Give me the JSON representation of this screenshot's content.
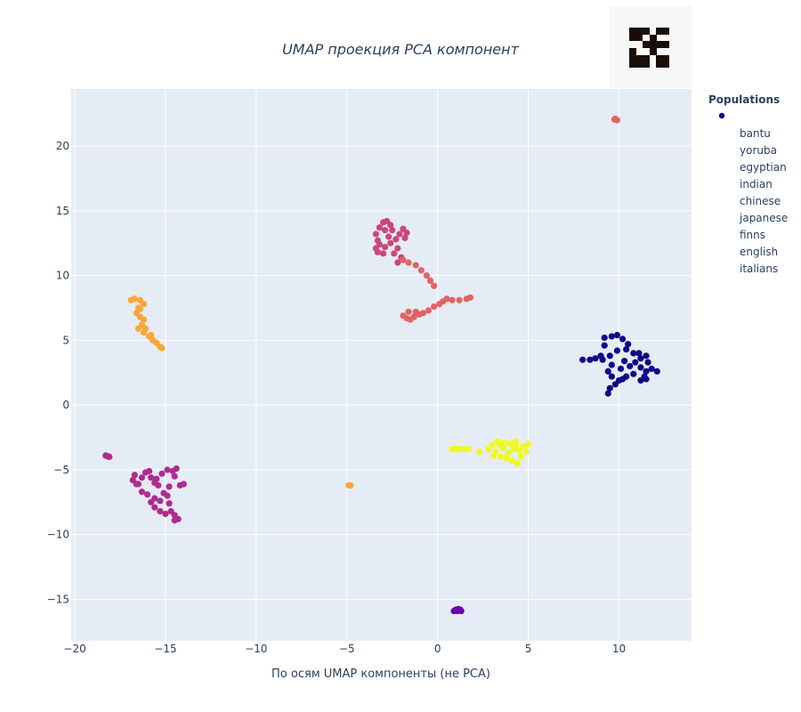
{
  "chart_data": {
    "type": "scatter",
    "title": "UMAP проекция PCA компонент",
    "xlabel": "По осям UMAP компоненты (не PCA)",
    "ylabel": "",
    "xlim": [
      -20.2,
      14
    ],
    "ylim": [
      -18.2,
      24.4
    ],
    "x_ticks": [
      -20,
      -15,
      -10,
      -5,
      0,
      5,
      10
    ],
    "x_tick_labels": [
      "−20",
      "−15",
      "−10",
      "−5",
      "0",
      "5",
      "10"
    ],
    "y_ticks": [
      -15,
      -10,
      -5,
      0,
      5,
      10,
      15,
      20
    ],
    "y_tick_labels": [
      "−15",
      "−10",
      "−5",
      "0",
      "5",
      "10",
      "15",
      "20"
    ],
    "grid": true,
    "legend": {
      "title": "Populations",
      "placement": "right",
      "marker_color": "#0d0887",
      "entries": [
        "bantu",
        "yoruba",
        "egyptian",
        "indian",
        "chinese",
        "japanese",
        "finns",
        "english",
        "italians"
      ]
    },
    "series": [
      {
        "color": "#0d0887",
        "points": [
          [
            8.0,
            3.5
          ],
          [
            8.4,
            3.5
          ],
          [
            8.7,
            3.6
          ],
          [
            9.0,
            3.8
          ],
          [
            9.2,
            4.6
          ],
          [
            9.2,
            5.2
          ],
          [
            9.6,
            5.3
          ],
          [
            9.9,
            5.4
          ],
          [
            10.2,
            5.1
          ],
          [
            10.5,
            4.7
          ],
          [
            10.4,
            4.3
          ],
          [
            9.9,
            4.2
          ],
          [
            9.5,
            3.8
          ],
          [
            9.6,
            3.1
          ],
          [
            9.4,
            2.6
          ],
          [
            9.6,
            2.2
          ],
          [
            9.8,
            1.6
          ],
          [
            9.5,
            1.3
          ],
          [
            9.4,
            0.9
          ],
          [
            10.0,
            1.9
          ],
          [
            10.4,
            2.2
          ],
          [
            10.1,
            2.8
          ],
          [
            10.6,
            3.0
          ],
          [
            10.9,
            3.3
          ],
          [
            11.2,
            3.6
          ],
          [
            11.1,
            4.0
          ],
          [
            11.5,
            3.8
          ],
          [
            11.6,
            3.3
          ],
          [
            11.2,
            2.9
          ],
          [
            11.5,
            2.6
          ],
          [
            11.8,
            2.8
          ],
          [
            12.1,
            2.6
          ],
          [
            11.4,
            2.2
          ],
          [
            11.2,
            1.9
          ],
          [
            10.8,
            2.4
          ],
          [
            10.3,
            3.4
          ],
          [
            10.8,
            4.0
          ],
          [
            11.5,
            2.0
          ],
          [
            10.2,
            2.0
          ],
          [
            9.1,
            3.5
          ]
        ]
      },
      {
        "color": "#6a00a8",
        "points": [
          [
            0.9,
            -15.9
          ],
          [
            1.0,
            -15.8
          ],
          [
            1.1,
            -15.9
          ],
          [
            1.2,
            -15.8
          ],
          [
            1.3,
            -15.9
          ],
          [
            1.05,
            -15.85
          ],
          [
            1.15,
            -15.75
          ],
          [
            1.25,
            -15.8
          ]
        ]
      },
      {
        "color": "#b12a90",
        "points": [
          [
            -18.3,
            -3.9
          ],
          [
            -18.1,
            -4.0
          ],
          [
            -18.2,
            -3.95
          ],
          [
            -16.7,
            -5.4
          ],
          [
            -16.8,
            -5.8
          ],
          [
            -16.5,
            -6.1
          ],
          [
            -16.3,
            -5.6
          ],
          [
            -16.1,
            -5.2
          ],
          [
            -15.9,
            -5.1
          ],
          [
            -15.8,
            -5.6
          ],
          [
            -15.6,
            -6.0
          ],
          [
            -15.4,
            -6.2
          ],
          [
            -15.5,
            -5.7
          ],
          [
            -15.2,
            -5.3
          ],
          [
            -14.9,
            -5.0
          ],
          [
            -14.6,
            -5.1
          ],
          [
            -14.4,
            -4.9
          ],
          [
            -14.5,
            -5.5
          ],
          [
            -14.2,
            -6.2
          ],
          [
            -14.0,
            -6.1
          ],
          [
            -14.8,
            -6.3
          ],
          [
            -15.1,
            -6.8
          ],
          [
            -15.6,
            -7.2
          ],
          [
            -16.0,
            -6.9
          ],
          [
            -16.3,
            -6.7
          ],
          [
            -15.8,
            -7.5
          ],
          [
            -15.6,
            -7.9
          ],
          [
            -15.3,
            -8.2
          ],
          [
            -15.0,
            -8.4
          ],
          [
            -14.7,
            -8.2
          ],
          [
            -14.5,
            -8.5
          ],
          [
            -14.3,
            -8.8
          ],
          [
            -14.5,
            -8.9
          ],
          [
            -14.9,
            -7.0
          ],
          [
            -14.8,
            -7.6
          ],
          [
            -16.6,
            -6.1
          ],
          [
            -15.3,
            -7.4
          ]
        ]
      },
      {
        "color": "#cc4778",
        "points": [
          [
            -3.4,
            13.2
          ],
          [
            -3.2,
            13.7
          ],
          [
            -3.0,
            14.1
          ],
          [
            -2.8,
            14.2
          ],
          [
            -2.6,
            13.9
          ],
          [
            -2.9,
            13.5
          ],
          [
            -3.3,
            12.7
          ],
          [
            -3.4,
            12.1
          ],
          [
            -3.3,
            11.8
          ],
          [
            -3.0,
            11.7
          ],
          [
            -2.9,
            12.2
          ],
          [
            -2.6,
            12.5
          ],
          [
            -2.3,
            12.8
          ],
          [
            -2.1,
            13.2
          ],
          [
            -1.9,
            13.6
          ],
          [
            -1.7,
            13.3
          ],
          [
            -2.2,
            12.1
          ],
          [
            -2.4,
            11.7
          ],
          [
            -2.0,
            11.4
          ],
          [
            -2.7,
            13.0
          ],
          [
            -3.2,
            12.4
          ],
          [
            -1.8,
            12.9
          ],
          [
            -2.5,
            13.5
          ],
          [
            -2.2,
            11.0
          ]
        ]
      },
      {
        "color": "#e16462",
        "points": [
          [
            -1.9,
            11.2
          ],
          [
            -1.6,
            11.0
          ],
          [
            -1.2,
            10.8
          ],
          [
            -0.9,
            10.4
          ],
          [
            -0.6,
            10.0
          ],
          [
            -0.4,
            9.6
          ],
          [
            -0.2,
            9.2
          ],
          [
            -1.9,
            6.9
          ],
          [
            -1.7,
            6.7
          ],
          [
            -1.5,
            6.6
          ],
          [
            -1.3,
            6.8
          ],
          [
            -1.0,
            7.0
          ],
          [
            -0.8,
            7.1
          ],
          [
            -0.5,
            7.3
          ],
          [
            -0.2,
            7.6
          ],
          [
            0.1,
            7.8
          ],
          [
            0.3,
            8.0
          ],
          [
            0.5,
            8.2
          ],
          [
            0.8,
            8.1
          ],
          [
            1.2,
            8.1
          ],
          [
            1.6,
            8.2
          ],
          [
            1.8,
            8.3
          ],
          [
            -1.6,
            7.2
          ],
          [
            -1.2,
            7.2
          ],
          [
            9.8,
            22.1
          ],
          [
            9.9,
            22.0
          ],
          [
            9.75,
            22.05
          ]
        ]
      },
      {
        "color": "#fca636",
        "points": [
          [
            -16.9,
            8.1
          ],
          [
            -16.7,
            8.2
          ],
          [
            -16.4,
            8.1
          ],
          [
            -16.2,
            7.8
          ],
          [
            -16.5,
            7.5
          ],
          [
            -16.6,
            7.1
          ],
          [
            -16.4,
            6.8
          ],
          [
            -16.2,
            6.6
          ],
          [
            -16.3,
            6.2
          ],
          [
            -16.5,
            5.9
          ],
          [
            -16.2,
            5.6
          ],
          [
            -15.9,
            5.3
          ],
          [
            -15.7,
            5.0
          ],
          [
            -15.5,
            4.8
          ],
          [
            -15.3,
            4.5
          ],
          [
            -15.2,
            4.4
          ],
          [
            -16.1,
            5.9
          ],
          [
            -15.8,
            5.4
          ],
          [
            -16.4,
            7.4
          ],
          [
            -4.9,
            -6.2
          ],
          [
            -4.8,
            -6.2
          ]
        ]
      },
      {
        "color": "#f0f921",
        "points": [
          [
            0.8,
            -3.4
          ],
          [
            1.0,
            -3.4
          ],
          [
            1.2,
            -3.4
          ],
          [
            1.5,
            -3.4
          ],
          [
            1.7,
            -3.4
          ],
          [
            2.3,
            -3.6
          ],
          [
            2.8,
            -3.4
          ],
          [
            3.0,
            -3.1
          ],
          [
            3.2,
            -3.6
          ],
          [
            3.4,
            -3.0
          ],
          [
            3.6,
            -3.3
          ],
          [
            3.7,
            -2.9
          ],
          [
            3.9,
            -3.7
          ],
          [
            4.0,
            -3.0
          ],
          [
            4.2,
            -3.4
          ],
          [
            4.3,
            -3.1
          ],
          [
            4.5,
            -3.5
          ],
          [
            4.6,
            -4.0
          ],
          [
            4.7,
            -3.2
          ],
          [
            4.9,
            -3.6
          ],
          [
            5.0,
            -3.0
          ],
          [
            3.5,
            -4.0
          ],
          [
            3.8,
            -4.1
          ],
          [
            4.1,
            -4.3
          ],
          [
            4.4,
            -4.5
          ],
          [
            4.3,
            -2.8
          ],
          [
            3.1,
            -3.9
          ],
          [
            3.3,
            -2.8
          ]
        ]
      }
    ]
  },
  "logo": {
    "label": "QR code",
    "bg_color": "#f7f7f8",
    "fg_color": "#1a0c06"
  }
}
